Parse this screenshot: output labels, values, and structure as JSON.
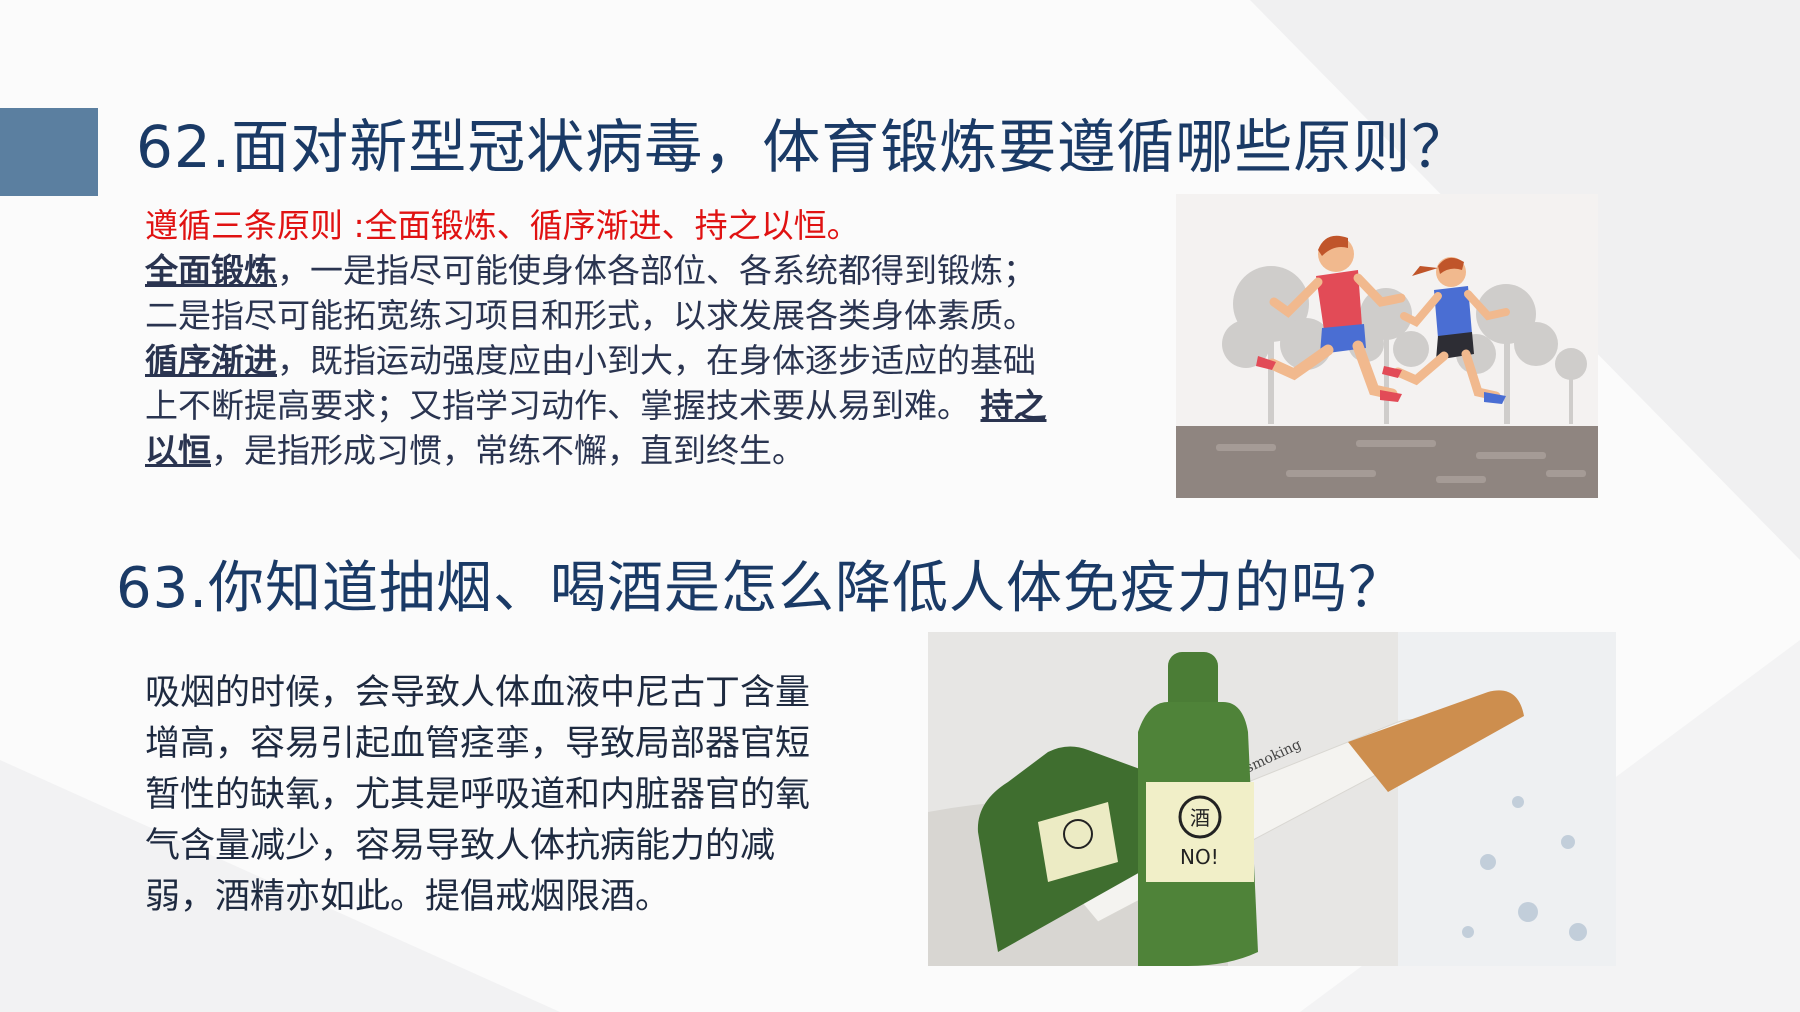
{
  "slide": {
    "q62": {
      "title": "62.面对新型冠状病毒，体育锻炼要遵循哪些原则？",
      "summary": "遵循三条原则 :全面锻炼、循序渐进、持之以恒。",
      "term1": "全面锻炼",
      "text1": "，一是指尽可能使身体各部位、各系统都得到锻炼；二是指尽可能拓宽练习项目和形式，以求发展各类身体素质。 ",
      "term2": "循序渐进",
      "text2": "，既指运动强度应由小到大，在身体逐步适应的基础上不断提高要求；又指学习动作、掌握技术要从易到难。 ",
      "term3": "持之以恒",
      "text3": "，是指形成习惯，常练不懈，直到终生。"
    },
    "q63": {
      "title": "63.你知道抽烟、喝酒是怎么降低人体免疫力的吗？",
      "body": "吸烟的时候，会导致人体血液中尼古丁含量增高，容易引起血管痉挛，导致局部器官短暂性的缺氧，尤其是呼吸道和内脏器官的氧气含量减少，容易导致人体抗病能力的减弱，酒精亦如此。提倡戒烟限酒。",
      "bottle_label": "NO!",
      "bottle_sign": "酒"
    },
    "colors": {
      "accent_block": "#5b7fa0",
      "heading": "#1a3a66",
      "summary": "#e01212"
    }
  }
}
